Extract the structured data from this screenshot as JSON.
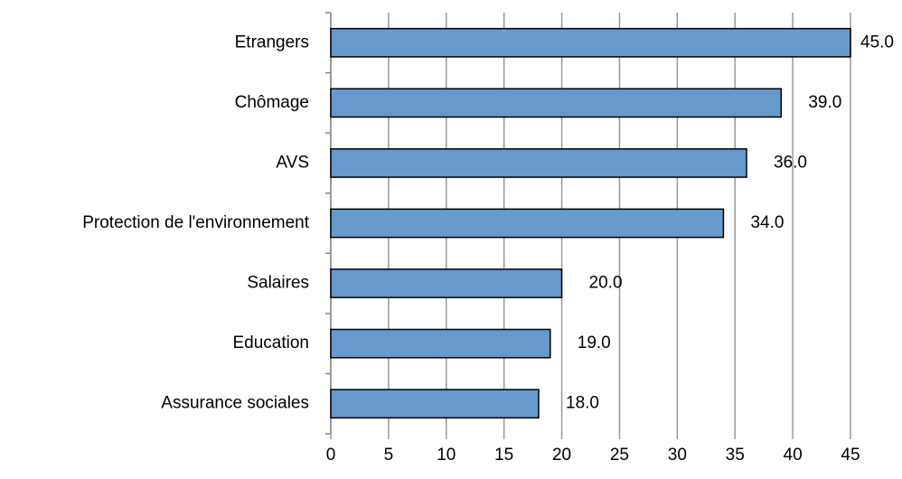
{
  "chart_data": {
    "type": "bar",
    "orientation": "horizontal",
    "categories": [
      "Etrangers",
      "Chômage",
      "AVS",
      "Protection de l'environnement",
      "Salaires",
      "Education",
      "Assurance sociales"
    ],
    "values": [
      45,
      39,
      36,
      34,
      20,
      19,
      18
    ],
    "value_labels": [
      "45.0",
      "39.0",
      "36.0",
      "34.0",
      "20.0",
      "19.0",
      "18.0"
    ],
    "color": "#6699cc",
    "xlim": [
      0,
      45
    ],
    "xticks": [
      0,
      5,
      10,
      15,
      20,
      25,
      30,
      35,
      40,
      45
    ],
    "grid": true
  }
}
